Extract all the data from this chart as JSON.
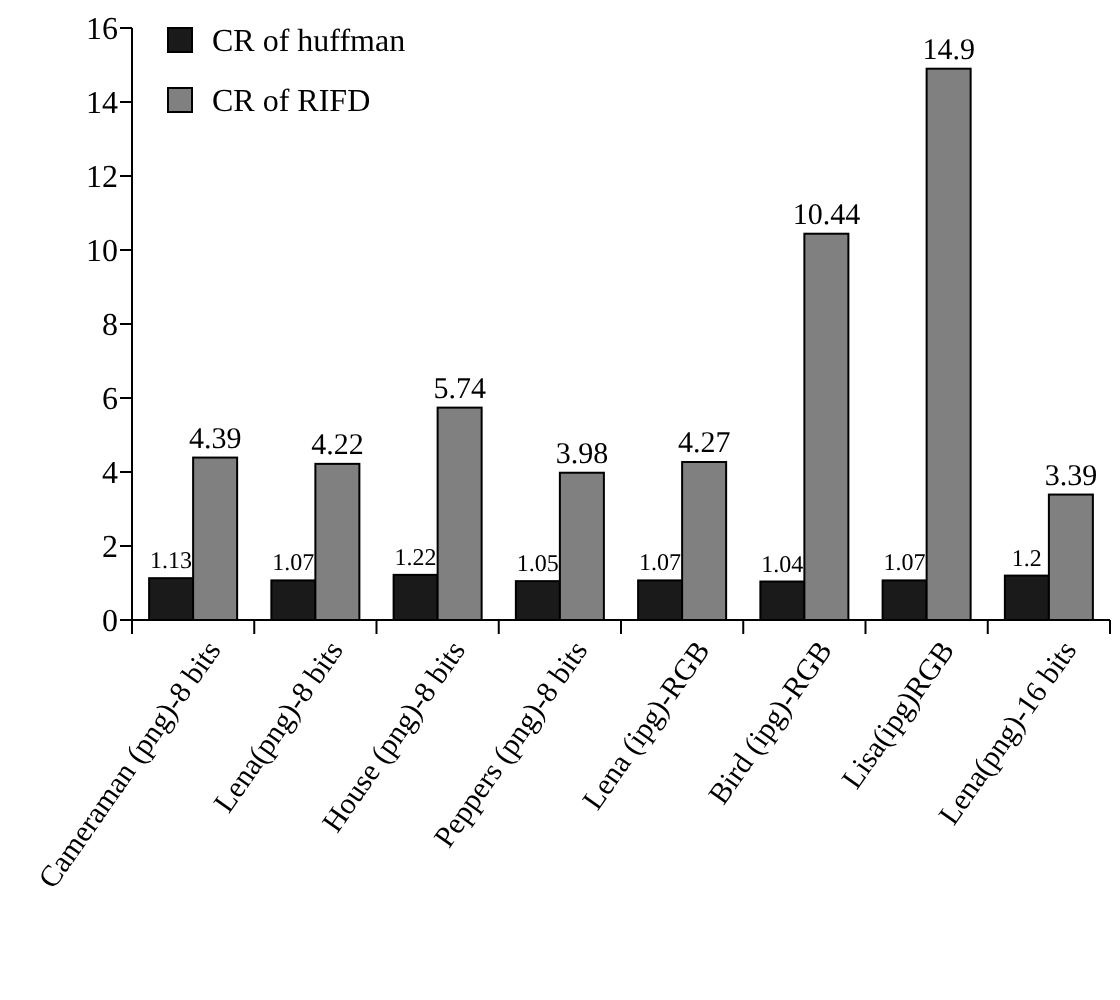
{
  "chart_data": {
    "type": "bar",
    "categories": [
      "Cameraman (png)-8 bits",
      "Lena(png)-8 bits",
      "House (png)-8 bits",
      "Peppers (png)-8 bits",
      "Lena (ipg)-RGB",
      "Bird (ipg)-RGB",
      "Lisa(ipg)RGB",
      "Lena(png)-16 bits"
    ],
    "series": [
      {
        "name": "CR of huffman",
        "color": "#1a1a1a",
        "values": [
          1.13,
          1.07,
          1.22,
          1.05,
          1.07,
          1.04,
          1.07,
          1.2
        ]
      },
      {
        "name": "CR of RIFD",
        "color": "#808080",
        "values": [
          4.39,
          4.22,
          5.74,
          3.98,
          4.27,
          10.44,
          14.9,
          3.39
        ]
      }
    ],
    "ylim": [
      0,
      16
    ],
    "yticks": [
      0,
      2,
      4,
      6,
      8,
      10,
      12,
      14,
      16
    ],
    "data_labels": true,
    "legend": "top left"
  }
}
